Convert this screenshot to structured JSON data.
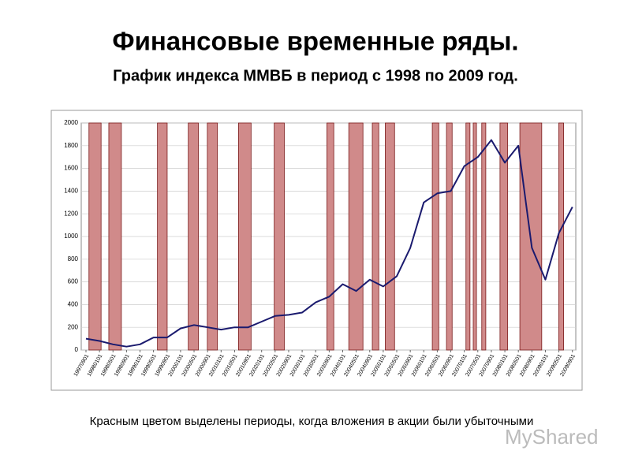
{
  "title": "Финансовые временные ряды.",
  "subtitle": "График индекса ММВБ в период с 1998 по 2009 год.",
  "caption": "Красным цветом выделены периоды, когда вложения в акции были убыточными",
  "watermark": "MyShared",
  "chart_data": {
    "type": "line",
    "grid": true,
    "xlim": [
      1997.55,
      2009.75
    ],
    "ylim": [
      0,
      2000
    ],
    "yticks": [
      0,
      200,
      400,
      600,
      800,
      1000,
      1200,
      1400,
      1600,
      1800,
      2000
    ],
    "xticks": [
      {
        "value": 1997.667,
        "label": "19970901"
      },
      {
        "value": 1998.0,
        "label": "19980101"
      },
      {
        "value": 1998.333,
        "label": "19980501"
      },
      {
        "value": 1998.667,
        "label": "19980901"
      },
      {
        "value": 1999.0,
        "label": "19990101"
      },
      {
        "value": 1999.333,
        "label": "19990501"
      },
      {
        "value": 1999.667,
        "label": "19990901"
      },
      {
        "value": 2000.0,
        "label": "20000101"
      },
      {
        "value": 2000.333,
        "label": "20000501"
      },
      {
        "value": 2000.667,
        "label": "20000901"
      },
      {
        "value": 2001.0,
        "label": "20010101"
      },
      {
        "value": 2001.333,
        "label": "20010501"
      },
      {
        "value": 2001.667,
        "label": "20010901"
      },
      {
        "value": 2002.0,
        "label": "20020101"
      },
      {
        "value": 2002.333,
        "label": "20020501"
      },
      {
        "value": 2002.667,
        "label": "20020901"
      },
      {
        "value": 2003.0,
        "label": "20030101"
      },
      {
        "value": 2003.333,
        "label": "20030501"
      },
      {
        "value": 2003.667,
        "label": "20030901"
      },
      {
        "value": 2004.0,
        "label": "20040101"
      },
      {
        "value": 2004.333,
        "label": "20040501"
      },
      {
        "value": 2004.667,
        "label": "20040901"
      },
      {
        "value": 2005.0,
        "label": "20050101"
      },
      {
        "value": 2005.333,
        "label": "20050501"
      },
      {
        "value": 2005.667,
        "label": "20050901"
      },
      {
        "value": 2006.0,
        "label": "20060101"
      },
      {
        "value": 2006.333,
        "label": "20060501"
      },
      {
        "value": 2006.667,
        "label": "20060901"
      },
      {
        "value": 2007.0,
        "label": "20070101"
      },
      {
        "value": 2007.333,
        "label": "20070501"
      },
      {
        "value": 2007.667,
        "label": "20070901"
      },
      {
        "value": 2008.0,
        "label": "20080101"
      },
      {
        "value": 2008.333,
        "label": "20080501"
      },
      {
        "value": 2008.667,
        "label": "20080901"
      },
      {
        "value": 2009.0,
        "label": "20090101"
      },
      {
        "value": 2009.333,
        "label": "20090501"
      },
      {
        "value": 2009.667,
        "label": "20090901"
      }
    ],
    "series": [
      {
        "color": "#1a1a6e",
        "x": [
          1997.667,
          1998.0,
          1998.333,
          1998.667,
          1999.0,
          1999.333,
          1999.667,
          2000.0,
          2000.333,
          2000.667,
          2001.0,
          2001.333,
          2001.667,
          2002.0,
          2002.333,
          2002.667,
          2003.0,
          2003.333,
          2003.667,
          2004.0,
          2004.333,
          2004.667,
          2005.0,
          2005.333,
          2005.667,
          2006.0,
          2006.333,
          2006.667,
          2007.0,
          2007.333,
          2007.667,
          2008.0,
          2008.333,
          2008.667,
          2009.0,
          2009.333,
          2009.667
        ],
        "values": [
          100,
          80,
          50,
          30,
          50,
          110,
          110,
          190,
          220,
          200,
          180,
          200,
          200,
          250,
          300,
          310,
          330,
          420,
          470,
          580,
          520,
          620,
          560,
          650,
          900,
          1300,
          1380,
          1400,
          1620,
          1700,
          1850,
          1650,
          1800,
          900,
          620,
          1030,
          1260
        ]
      }
    ],
    "loss_periods": {
      "color": "#d08a8a",
      "ranges": [
        [
          1997.74,
          1998.04
        ],
        [
          1998.23,
          1998.54
        ],
        [
          1999.43,
          1999.67
        ],
        [
          2000.19,
          2000.44
        ],
        [
          2000.66,
          2000.91
        ],
        [
          2001.43,
          2001.74
        ],
        [
          2002.31,
          2002.56
        ],
        [
          2003.61,
          2003.78
        ],
        [
          2004.15,
          2004.5
        ],
        [
          2004.73,
          2004.89
        ],
        [
          2005.05,
          2005.28
        ],
        [
          2006.21,
          2006.37
        ],
        [
          2006.56,
          2006.7
        ],
        [
          2007.04,
          2007.14
        ],
        [
          2007.22,
          2007.3
        ],
        [
          2007.43,
          2007.53
        ],
        [
          2007.88,
          2008.07
        ],
        [
          2008.37,
          2008.91
        ],
        [
          2009.33,
          2009.45
        ]
      ]
    }
  }
}
